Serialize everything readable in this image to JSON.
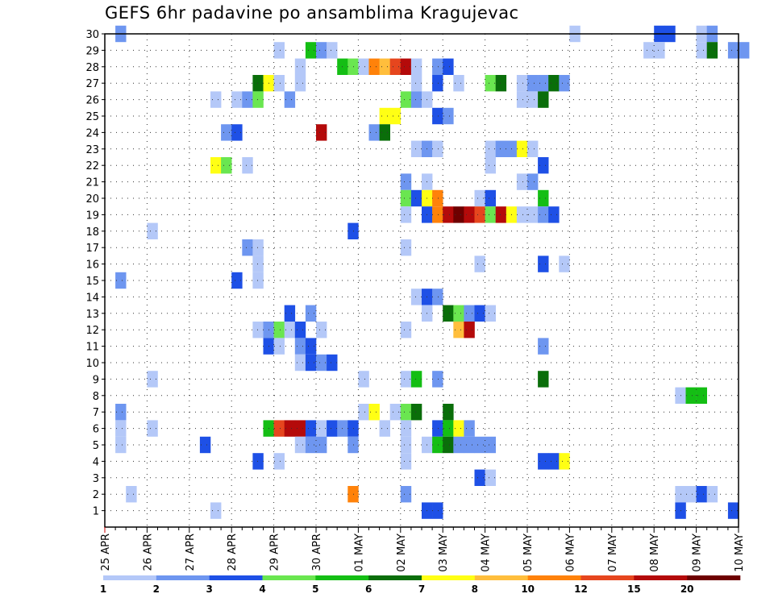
{
  "chart_data": {
    "type": "heatmap",
    "title": "GEFS 6hr padavine po ansamblima Kragujevac",
    "x_tick_labels": [
      "25 APR",
      "26 APR",
      "27 APR",
      "28 APR",
      "29 APR",
      "30 APR",
      "01 MAY",
      "02 MAY",
      "03 MAY",
      "04 MAY",
      "05 MAY",
      "06 MAY",
      "07 MAY",
      "08 MAY",
      "09 MAY",
      "10 MAY"
    ],
    "y_tick_labels": [
      "1",
      "2",
      "3",
      "4",
      "5",
      "6",
      "7",
      "8",
      "9",
      "10",
      "11",
      "12",
      "13",
      "14",
      "15",
      "16",
      "17",
      "18",
      "19",
      "20",
      "21",
      "22",
      "23",
      "24",
      "25",
      "26",
      "27",
      "28",
      "29",
      "30"
    ],
    "x_axis": {
      "start": "25 APR 00z",
      "end": "10 MAY 00z",
      "step_hours": 6,
      "steps": 60
    },
    "y_range": [
      0,
      30
    ],
    "grid": true,
    "colorbar": {
      "labels": [
        "1",
        "2",
        "3",
        "4",
        "5",
        "6",
        "7",
        "8",
        "10",
        "12",
        "15",
        "20"
      ],
      "colors": [
        "#b4c8f8",
        "#6e96f0",
        "#1e50e6",
        "#6ae650",
        "#14be14",
        "#0a6e0a",
        "#ffff14",
        "#ffbe3c",
        "#ff820a",
        "#e6461e",
        "#b40a0a",
        "#6e0000"
      ]
    },
    "cells": [
      [
        "30",
        [
          [
            1,
            2
          ],
          [
            44,
            1
          ],
          [
            52,
            3
          ],
          [
            53,
            3
          ],
          [
            56,
            1
          ],
          [
            57,
            2
          ]
        ]
      ],
      [
        "29",
        [
          [
            16,
            1
          ],
          [
            19,
            5
          ],
          [
            20,
            2
          ],
          [
            21,
            1
          ],
          [
            51,
            1
          ],
          [
            52,
            1
          ],
          [
            56,
            1
          ],
          [
            57,
            6
          ],
          [
            59,
            2
          ],
          [
            60,
            2
          ]
        ]
      ],
      [
        "28",
        [
          [
            18,
            1
          ],
          [
            22,
            5
          ],
          [
            23,
            4
          ],
          [
            24,
            1
          ],
          [
            25,
            9
          ],
          [
            26,
            8
          ],
          [
            27,
            10
          ],
          [
            28,
            11
          ],
          [
            29,
            1
          ],
          [
            31,
            2
          ],
          [
            32,
            3
          ]
        ]
      ],
      [
        "27",
        [
          [
            14,
            6
          ],
          [
            15,
            7
          ],
          [
            16,
            1
          ],
          [
            18,
            1
          ],
          [
            29,
            1
          ],
          [
            31,
            3
          ],
          [
            33,
            1
          ],
          [
            36,
            4
          ],
          [
            37,
            6
          ],
          [
            39,
            1
          ],
          [
            40,
            2
          ],
          [
            41,
            2
          ],
          [
            42,
            6
          ],
          [
            43,
            2
          ]
        ]
      ],
      [
        "26",
        [
          [
            10,
            1
          ],
          [
            12,
            1
          ],
          [
            13,
            2
          ],
          [
            14,
            4
          ],
          [
            17,
            2
          ],
          [
            28,
            4
          ],
          [
            29,
            2
          ],
          [
            30,
            1
          ],
          [
            39,
            1
          ],
          [
            40,
            1
          ],
          [
            41,
            6
          ]
        ]
      ],
      [
        "25",
        [
          [
            26,
            7
          ],
          [
            27,
            7
          ],
          [
            31,
            3
          ],
          [
            32,
            2
          ]
        ]
      ],
      [
        "24",
        [
          [
            11,
            2
          ],
          [
            12,
            3
          ],
          [
            20,
            11
          ],
          [
            25,
            2
          ],
          [
            26,
            6
          ]
        ]
      ],
      [
        "23",
        [
          [
            29,
            1
          ],
          [
            30,
            2
          ],
          [
            31,
            1
          ],
          [
            36,
            1
          ],
          [
            37,
            2
          ],
          [
            38,
            2
          ],
          [
            39,
            7
          ],
          [
            40,
            1
          ]
        ]
      ],
      [
        "22",
        [
          [
            10,
            7
          ],
          [
            11,
            4
          ],
          [
            13,
            1
          ],
          [
            36,
            1
          ],
          [
            41,
            3
          ]
        ]
      ],
      [
        "21",
        [
          [
            28,
            2
          ],
          [
            30,
            1
          ],
          [
            39,
            1
          ],
          [
            40,
            2
          ]
        ]
      ],
      [
        "20",
        [
          [
            28,
            4
          ],
          [
            29,
            3
          ],
          [
            30,
            7
          ],
          [
            31,
            9
          ],
          [
            35,
            1
          ],
          [
            36,
            3
          ],
          [
            41,
            5
          ]
        ]
      ],
      [
        "19",
        [
          [
            28,
            1
          ],
          [
            30,
            3
          ],
          [
            31,
            9
          ],
          [
            32,
            11
          ],
          [
            33,
            12
          ],
          [
            34,
            11
          ],
          [
            35,
            10
          ],
          [
            36,
            4
          ],
          [
            37,
            11
          ],
          [
            38,
            7
          ],
          [
            39,
            1
          ],
          [
            40,
            1
          ],
          [
            41,
            2
          ],
          [
            42,
            3
          ]
        ]
      ],
      [
        "18",
        [
          [
            4,
            1
          ],
          [
            23,
            3
          ]
        ]
      ],
      [
        "17",
        [
          [
            13,
            2
          ],
          [
            14,
            1
          ],
          [
            28,
            1
          ]
        ]
      ],
      [
        "16",
        [
          [
            14,
            1
          ],
          [
            35,
            1
          ],
          [
            41,
            3
          ],
          [
            43,
            1
          ]
        ]
      ],
      [
        "15",
        [
          [
            1,
            2
          ],
          [
            12,
            3
          ],
          [
            14,
            1
          ]
        ]
      ],
      [
        "14",
        [
          [
            29,
            1
          ],
          [
            30,
            3
          ],
          [
            31,
            2
          ]
        ]
      ],
      [
        "13",
        [
          [
            17,
            3
          ],
          [
            19,
            2
          ],
          [
            30,
            1
          ],
          [
            32,
            6
          ],
          [
            33,
            4
          ],
          [
            34,
            2
          ],
          [
            35,
            3
          ],
          [
            36,
            1
          ]
        ]
      ],
      [
        "12",
        [
          [
            14,
            1
          ],
          [
            15,
            2
          ],
          [
            16,
            4
          ],
          [
            17,
            1
          ],
          [
            18,
            3
          ],
          [
            20,
            1
          ],
          [
            28,
            1
          ],
          [
            33,
            8
          ],
          [
            34,
            11
          ]
        ]
      ],
      [
        "11",
        [
          [
            15,
            3
          ],
          [
            16,
            1
          ],
          [
            18,
            2
          ],
          [
            19,
            3
          ],
          [
            41,
            2
          ]
        ]
      ],
      [
        "10",
        [
          [
            18,
            1
          ],
          [
            19,
            3
          ],
          [
            20,
            2
          ],
          [
            21,
            3
          ]
        ]
      ],
      [
        "9",
        [
          [
            4,
            1
          ],
          [
            24,
            1
          ],
          [
            28,
            1
          ],
          [
            29,
            5
          ],
          [
            31,
            2
          ],
          [
            41,
            6
          ]
        ]
      ],
      [
        "8",
        [
          [
            54,
            1
          ],
          [
            55,
            5
          ],
          [
            56,
            5
          ]
        ]
      ],
      [
        "7",
        [
          [
            1,
            2
          ],
          [
            24,
            1
          ],
          [
            25,
            7
          ],
          [
            27,
            1
          ],
          [
            28,
            4
          ],
          [
            29,
            6
          ],
          [
            32,
            6
          ]
        ]
      ],
      [
        "6",
        [
          [
            1,
            1
          ],
          [
            4,
            1
          ],
          [
            15,
            5
          ],
          [
            16,
            10
          ],
          [
            17,
            11
          ],
          [
            18,
            11
          ],
          [
            19,
            3
          ],
          [
            20,
            1
          ],
          [
            21,
            3
          ],
          [
            22,
            2
          ],
          [
            23,
            3
          ],
          [
            26,
            1
          ],
          [
            28,
            1
          ],
          [
            31,
            3
          ],
          [
            32,
            5
          ],
          [
            33,
            7
          ],
          [
            34,
            2
          ]
        ]
      ],
      [
        "5",
        [
          [
            1,
            1
          ],
          [
            9,
            3
          ],
          [
            18,
            1
          ],
          [
            19,
            2
          ],
          [
            20,
            2
          ],
          [
            23,
            2
          ],
          [
            28,
            1
          ],
          [
            30,
            1
          ],
          [
            31,
            5
          ],
          [
            32,
            6
          ],
          [
            33,
            2
          ],
          [
            34,
            2
          ],
          [
            35,
            2
          ],
          [
            36,
            2
          ]
        ]
      ],
      [
        "4",
        [
          [
            14,
            3
          ],
          [
            16,
            1
          ],
          [
            28,
            1
          ],
          [
            41,
            3
          ],
          [
            42,
            3
          ],
          [
            43,
            7
          ]
        ]
      ],
      [
        "3",
        [
          [
            35,
            3
          ],
          [
            36,
            1
          ]
        ]
      ],
      [
        "2",
        [
          [
            2,
            1
          ],
          [
            23,
            9
          ],
          [
            28,
            2
          ],
          [
            54,
            1
          ],
          [
            55,
            1
          ],
          [
            56,
            3
          ],
          [
            57,
            1
          ]
        ]
      ],
      [
        "1",
        [
          [
            10,
            1
          ],
          [
            30,
            3
          ],
          [
            31,
            3
          ],
          [
            54,
            3
          ],
          [
            59,
            3
          ]
        ]
      ]
    ]
  }
}
